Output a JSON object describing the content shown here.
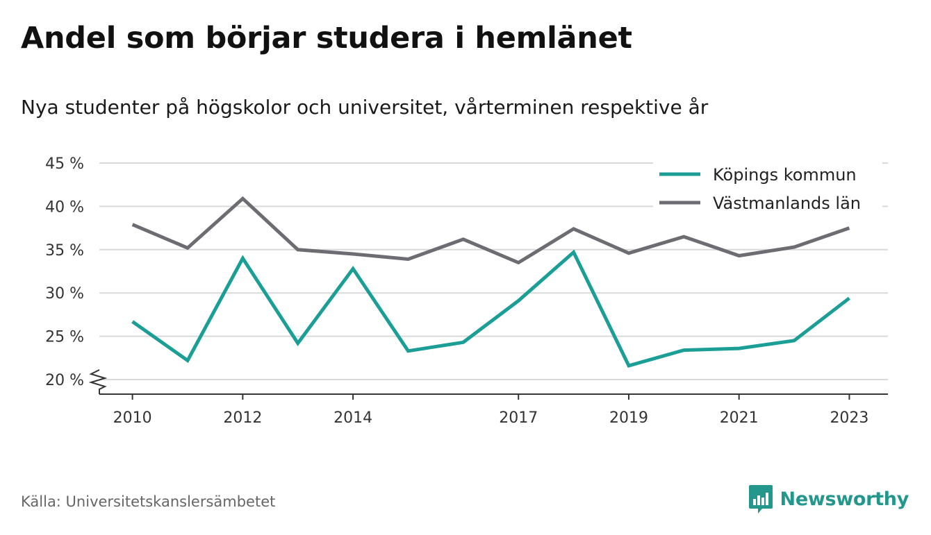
{
  "header": {
    "title": "Andel som börjar studera i hemlänet",
    "subtitle": "Nya studenter på högskolor och universitet, vårterminen respektive år"
  },
  "footer": {
    "source": "Källa: Universitetskanslersämbetet",
    "brand": "Newsworthy",
    "brand_icon": "bar-chart-speech-bubble-icon",
    "brand_color": "#24978d"
  },
  "chart_data": {
    "type": "line",
    "title": "Andel som börjar studera i hemlänet",
    "subtitle": "Nya studenter på högskolor och universitet, vårterminen respektive år",
    "x": [
      2010,
      2011,
      2012,
      2013,
      2014,
      2015,
      2016,
      2017,
      2018,
      2019,
      2020,
      2021,
      2022,
      2023
    ],
    "x_tick_values": [
      2010,
      2012,
      2014,
      2017,
      2019,
      2021,
      2023
    ],
    "x_tick_labels": [
      "2010",
      "2012",
      "2014",
      "2017",
      "2019",
      "2021",
      "2023"
    ],
    "xlim": [
      2009.4,
      2023.7
    ],
    "ylim": [
      18,
      45
    ],
    "y_tick_values": [
      20,
      25,
      30,
      35,
      40,
      45
    ],
    "y_tick_labels": [
      "20 %",
      "25 %",
      "30 %",
      "35 %",
      "40 %",
      "45 %"
    ],
    "y_axis_break": true,
    "grid": true,
    "legend_position": "top-right",
    "series": [
      {
        "name": "Köpings kommun",
        "color": "#1a9e96",
        "values": [
          26.7,
          22.2,
          34.0,
          24.2,
          32.8,
          23.3,
          24.3,
          29.1,
          34.7,
          21.6,
          23.4,
          23.6,
          24.5,
          29.4
        ]
      },
      {
        "name": "Västmanlands län",
        "color": "#6d6c73",
        "values": [
          37.9,
          35.2,
          40.9,
          35.0,
          34.5,
          33.9,
          36.2,
          33.5,
          37.4,
          34.6,
          36.5,
          34.3,
          35.3,
          37.5
        ]
      }
    ]
  }
}
